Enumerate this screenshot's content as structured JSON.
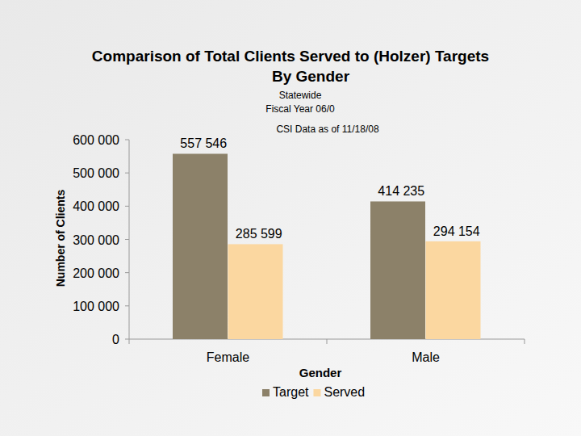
{
  "chart_data": {
    "type": "bar",
    "title": "Comparison of Total Clients Served to (Holzer) Targets By Gender",
    "subtitle": [
      "Statewide",
      "Fiscal Year 06/0"
    ],
    "annotations": [
      "CSI Data as of 11/18/08"
    ],
    "x_label": "Gender",
    "y_label": "Number of Clients",
    "categories": [
      "Female",
      "Male"
    ],
    "series": [
      {
        "name": "Target",
        "color": "#8c8169",
        "values": [
          557546,
          414235
        ],
        "value_labels": [
          "557 546",
          "414 235"
        ]
      },
      {
        "name": "Served",
        "color": "#fbd7a0",
        "values": [
          285599,
          294154
        ],
        "value_labels": [
          "285 599",
          "294 154"
        ]
      }
    ],
    "ylim": [
      0,
      600000
    ],
    "yticks": [
      {
        "value": 0,
        "label": "0"
      },
      {
        "value": 100000,
        "label": "100 000"
      },
      {
        "value": 200000,
        "label": "200 000"
      },
      {
        "value": 300000,
        "label": "300 000"
      },
      {
        "value": 400000,
        "label": "400 000"
      },
      {
        "value": 500000,
        "label": "500 000"
      },
      {
        "value": 600000,
        "label": "600 000"
      }
    ],
    "grid": false,
    "legend": "bottom",
    "data_labels": true
  }
}
